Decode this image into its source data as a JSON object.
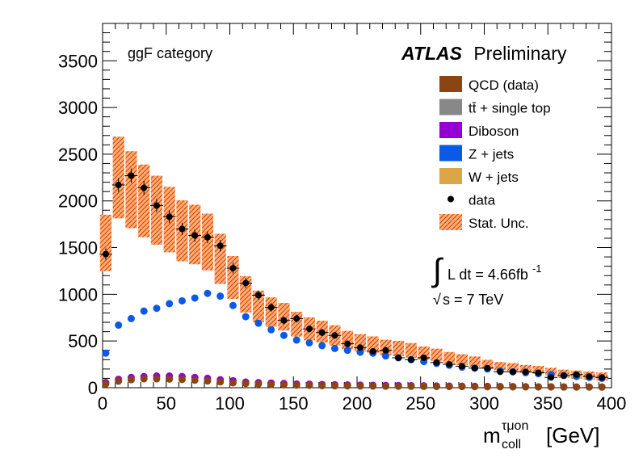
{
  "chart_data": {
    "type": "scatter",
    "category_label": "ggF category",
    "brand": {
      "bold": "ATLAS",
      "normal": "Preliminary"
    },
    "xlabel": {
      "main": "m",
      "sup": "τμon",
      "sub": "coll",
      "unit": "[GeV]"
    },
    "ylabel": "",
    "xlim": [
      0,
      400
    ],
    "ylim": [
      0,
      3900
    ],
    "xticks": [
      0,
      50,
      100,
      150,
      200,
      250,
      300,
      350,
      400
    ],
    "yticks": [
      0,
      500,
      1000,
      1500,
      2000,
      2500,
      3000,
      3500
    ],
    "lumi": {
      "integral": "L dt = 4.66fb",
      "exp": "-1",
      "sqrts": "s = 7 TeV"
    },
    "colors": {
      "qcd": "#8b4513",
      "ttbar": "#888888",
      "diboson": "#9400d3",
      "zjets": "#0a5ae6",
      "wjets": "#dca646",
      "data": "#000000",
      "stat": "#cc2200"
    },
    "legend": [
      {
        "label": "QCD (data)",
        "key": "qcd",
        "kind": "box"
      },
      {
        "label": "tt̄ + single top",
        "key": "ttbar",
        "kind": "box"
      },
      {
        "label": "Diboson",
        "key": "diboson",
        "kind": "box"
      },
      {
        "label": "Z + jets",
        "key": "zjets",
        "kind": "box"
      },
      {
        "label": "W + jets",
        "key": "wjets",
        "kind": "box"
      },
      {
        "label": "data",
        "key": "data",
        "kind": "point"
      },
      {
        "label": "Stat. Unc.",
        "key": "stat",
        "kind": "hatch"
      }
    ],
    "bin_centers": [
      2.5,
      12.5,
      22.5,
      32.5,
      42.5,
      52.5,
      62.5,
      72.5,
      82.5,
      92.5,
      102.5,
      112.5,
      122.5,
      132.5,
      142.5,
      152.5,
      162.5,
      172.5,
      182.5,
      192.5,
      202.5,
      212.5,
      222.5,
      232.5,
      242.5,
      252.5,
      262.5,
      272.5,
      282.5,
      292.5,
      302.5,
      312.5,
      322.5,
      332.5,
      342.5,
      352.5,
      362.5,
      372.5,
      382.5,
      392.5
    ],
    "series": [
      {
        "name": "Stat. Unc.",
        "key": "stat",
        "values": [
          1550,
          2250,
          2120,
          2000,
          1900,
          1800,
          1680,
          1640,
          1560,
          1380,
          1180,
          1000,
          870,
          810,
          760,
          680,
          630,
          600,
          560,
          510,
          480,
          460,
          430,
          420,
          400,
          370,
          350,
          320,
          300,
          280,
          250,
          230,
          220,
          200,
          190,
          170,
          150,
          140,
          130,
          120
        ]
      },
      {
        "name": "data",
        "key": "data",
        "values": [
          1430,
          2170,
          2270,
          2140,
          1950,
          1830,
          1700,
          1630,
          1610,
          1520,
          1280,
          1120,
          990,
          860,
          720,
          740,
          630,
          590,
          560,
          470,
          430,
          390,
          400,
          320,
          300,
          320,
          270,
          250,
          230,
          210,
          210,
          170,
          170,
          170,
          160,
          110,
          130,
          140,
          120,
          110
        ]
      },
      {
        "name": "Z + jets",
        "key": "zjets",
        "values": [
          370,
          670,
          740,
          820,
          850,
          900,
          930,
          960,
          1010,
          980,
          880,
          760,
          690,
          620,
          560,
          510,
          480,
          450,
          420,
          400,
          380,
          370,
          340,
          320,
          300,
          280,
          260,
          240,
          220,
          210,
          200,
          180,
          170,
          160,
          150,
          140,
          130,
          120,
          110,
          100
        ]
      },
      {
        "name": "Diboson",
        "key": "diboson",
        "values": [
          55,
          90,
          110,
          120,
          125,
          125,
          120,
          110,
          100,
          85,
          75,
          60,
          55,
          50,
          45,
          40,
          38,
          35,
          32,
          30,
          28,
          26,
          25,
          24,
          22,
          20,
          18,
          17,
          16,
          15,
          14,
          13,
          12,
          11,
          10,
          10,
          9,
          8,
          8,
          8
        ]
      },
      {
        "name": "QCD (data)",
        "key": "qcd",
        "values": [
          40,
          70,
          85,
          95,
          95,
          92,
          88,
          80,
          72,
          62,
          52,
          45,
          40,
          35,
          30,
          27,
          25,
          22,
          20,
          19,
          18,
          17,
          16,
          15,
          15,
          14,
          13,
          12,
          12,
          11,
          10,
          10,
          9,
          9,
          8,
          8,
          7,
          7,
          7,
          6
        ]
      }
    ]
  }
}
